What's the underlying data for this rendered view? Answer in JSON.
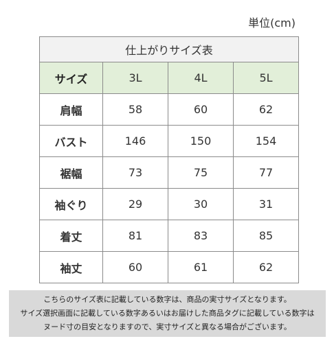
{
  "unit_label": "単位(cm)",
  "table": {
    "title": "仕上がりサイズ表",
    "header": {
      "label": "サイズ",
      "sizes": [
        "3L",
        "4L",
        "5L"
      ]
    },
    "rows": [
      {
        "label": "肩幅",
        "values": [
          "58",
          "60",
          "62"
        ]
      },
      {
        "label": "バスト",
        "values": [
          "146",
          "150",
          "154"
        ]
      },
      {
        "label": "裾幅",
        "values": [
          "73",
          "75",
          "77"
        ]
      },
      {
        "label": "袖ぐり",
        "values": [
          "29",
          "30",
          "31"
        ]
      },
      {
        "label": "着丈",
        "values": [
          "81",
          "83",
          "85"
        ]
      },
      {
        "label": "袖丈",
        "values": [
          "60",
          "61",
          "62"
        ]
      }
    ]
  },
  "notes": [
    "こちらのサイズ表に記載している数字は、商品の実寸サイズとなります。",
    "サイズ選択画面に記載している数字あるいはお届けした商品タグに記載している数字は",
    "ヌード寸の目安となりますので、実寸サイズと異なる場合がございます。"
  ],
  "colors": {
    "header_bg": "#e2efd9",
    "caption_bg": "#f2f2f2",
    "note_bg": "#d9d9d9"
  }
}
